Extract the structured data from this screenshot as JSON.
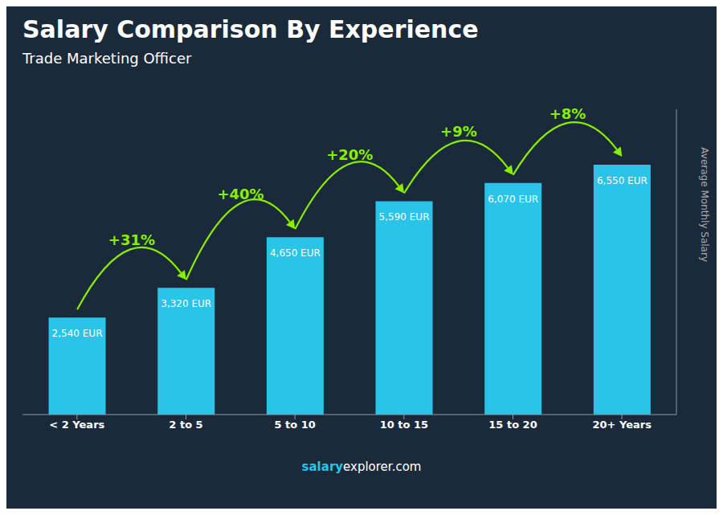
{
  "chart_data": {
    "type": "bar",
    "title": "Salary Comparison By Experience",
    "subtitle": "Trade Marketing Officer",
    "ylabel": "Average Monthly Salary",
    "categories": [
      "< 2 Years",
      "2 to 5",
      "5 to 10",
      "10 to 15",
      "15 to 20",
      "20+ Years"
    ],
    "values": [
      2540,
      3320,
      4650,
      5590,
      6070,
      6550
    ],
    "value_labels": [
      "2,540 EUR",
      "3,320 EUR",
      "4,650 EUR",
      "5,590 EUR",
      "6,070 EUR",
      "6,550 EUR"
    ],
    "data_labels": true,
    "color": "#29c4e8",
    "ylim": [
      0,
      8000
    ],
    "tick_labels": "x",
    "grid": false,
    "annotations": [
      {
        "type": "arrow",
        "text": "+31%",
        "color": "#88ee00"
      },
      {
        "type": "arrow",
        "text": "+40%",
        "color": "#88ee00"
      },
      {
        "type": "arrow",
        "text": "+20%",
        "color": "#88ee00"
      },
      {
        "type": "arrow",
        "text": "+9%",
        "color": "#88ee00"
      },
      {
        "type": "arrow",
        "text": "+8%",
        "color": "#88ee00"
      },
      {
        "type": "footer",
        "text": "salary",
        "color": "#29c4e8"
      },
      {
        "type": "footer",
        "text": "explorer.com"
      }
    ]
  }
}
